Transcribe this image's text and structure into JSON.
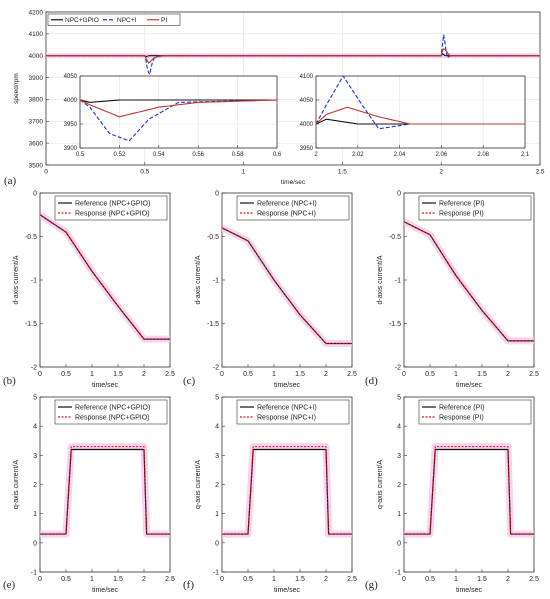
{
  "colors": {
    "reference": "#111111",
    "npc_gpio": "#111111",
    "npc_i": "#1f2fd0",
    "pi": "#c0392b",
    "response": "#e01010",
    "band": "#f6c8ee"
  },
  "chart_data": [
    {
      "id": "a",
      "type": "line",
      "label": "(a)",
      "xlabel": "time/sec",
      "ylabel": "speed/rpm",
      "xlim": [
        0,
        2.5
      ],
      "ylim": [
        3500,
        4200
      ],
      "xticks": [
        "0",
        "0.5",
        "1",
        "1.5",
        "2",
        "2.5"
      ],
      "yticks": [
        "3500",
        "3600",
        "3700",
        "3800",
        "3900",
        "4000",
        "4100",
        "4200"
      ],
      "grid": true,
      "legend_position": "top-left",
      "legend": [
        "NPC+GPIO",
        "NPC+I",
        "PI"
      ],
      "series": [
        {
          "name": "NPC+GPIO",
          "x": [
            0,
            0.5,
            0.505,
            0.52,
            0.54,
            0.6,
            2.0,
            2.005,
            2.02,
            2.04,
            2.5
          ],
          "y": [
            4000,
            4000,
            3995,
            4000,
            4000,
            4000,
            4000,
            4010,
            4000,
            4000,
            4000
          ]
        },
        {
          "name": "NPC+I",
          "x": [
            0,
            0.5,
            0.505,
            0.515,
            0.525,
            0.535,
            0.55,
            0.6,
            2.0,
            2.005,
            2.013,
            2.022,
            2.03,
            2.045,
            2.5
          ],
          "y": [
            4000,
            4000,
            3985,
            3930,
            3915,
            3960,
            3995,
            4000,
            4000,
            4040,
            4100,
            4040,
            3990,
            4000,
            4000
          ]
        },
        {
          "name": "PI",
          "x": [
            0,
            0.5,
            0.505,
            0.52,
            0.54,
            0.56,
            0.6,
            2.0,
            2.005,
            2.015,
            2.03,
            2.045,
            2.5
          ],
          "y": [
            4000,
            4000,
            3990,
            3965,
            3985,
            3995,
            4000,
            4000,
            4020,
            4035,
            4015,
            4000,
            4000
          ]
        }
      ],
      "insets": [
        {
          "xlim": [
            0.5,
            0.6
          ],
          "ylim": [
            3900,
            4050
          ],
          "xticks": [
            "0.5",
            "0.52",
            "0.54",
            "0.56",
            "0.58",
            "0.6"
          ],
          "yticks": [
            "3900",
            "3950",
            "4000",
            "4050"
          ]
        },
        {
          "xlim": [
            2,
            2.1
          ],
          "ylim": [
            3950,
            4100
          ],
          "xticks": [
            "2",
            "2.02",
            "2.04",
            "2.06",
            "2.08",
            "2.1"
          ],
          "yticks": [
            "3950",
            "4000",
            "4050",
            "4100"
          ]
        }
      ]
    },
    {
      "id": "b",
      "type": "line",
      "label": "(b)",
      "xlabel": "time/sec",
      "ylabel": "d-axis current/A",
      "xlim": [
        0,
        2.5
      ],
      "ylim": [
        -2,
        0
      ],
      "xticks": [
        "0",
        "0.5",
        "1",
        "1.5",
        "2",
        "2.5"
      ],
      "yticks": [
        "-2",
        "-1.5",
        "-1",
        "-0.5",
        "0"
      ],
      "legend_position": "top-right",
      "legend": [
        "Reference (NPC+GPIO)",
        "Response (NPC+GPIO)"
      ],
      "series": [
        {
          "name": "Reference (NPC+GPIO)",
          "x": [
            0,
            0.5,
            1.0,
            1.5,
            2.0,
            2.5
          ],
          "y": [
            -0.25,
            -0.45,
            -0.9,
            -1.3,
            -1.68,
            -1.68
          ]
        },
        {
          "name": "Response (NPC+GPIO)",
          "x": [
            0,
            0.5,
            1.0,
            1.5,
            2.0,
            2.5
          ],
          "y": [
            -0.25,
            -0.45,
            -0.9,
            -1.3,
            -1.68,
            -1.68
          ]
        }
      ]
    },
    {
      "id": "c",
      "type": "line",
      "label": "(c)",
      "xlabel": "time/sec",
      "ylabel": "d-axis current/A",
      "xlim": [
        0,
        2.5
      ],
      "ylim": [
        -2,
        0
      ],
      "xticks": [
        "0",
        "0.5",
        "1",
        "1.5",
        "2",
        "2.5"
      ],
      "yticks": [
        "-2",
        "-1.5",
        "-1",
        "-0.5",
        "0"
      ],
      "legend_position": "top-right",
      "legend": [
        "Reference (NPC+I)",
        "Response (NPC+I)"
      ],
      "series": [
        {
          "name": "Reference (NPC+I)",
          "x": [
            0,
            0.5,
            1.0,
            1.5,
            2.0,
            2.5
          ],
          "y": [
            -0.4,
            -0.55,
            -1.0,
            -1.4,
            -1.73,
            -1.73
          ]
        },
        {
          "name": "Response (NPC+I)",
          "x": [
            0,
            0.5,
            1.0,
            1.5,
            2.0,
            2.5
          ],
          "y": [
            -0.4,
            -0.55,
            -1.0,
            -1.4,
            -1.73,
            -1.73
          ]
        }
      ]
    },
    {
      "id": "d",
      "type": "line",
      "label": "(d)",
      "xlabel": "time/sec",
      "ylabel": "d-axis current/A",
      "xlim": [
        0,
        2.5
      ],
      "ylim": [
        -2,
        0
      ],
      "xticks": [
        "0",
        "0.5",
        "1",
        "1.5",
        "2",
        "2.5"
      ],
      "yticks": [
        "-2",
        "-1.5",
        "-1",
        "-0.5",
        "0"
      ],
      "legend_position": "top-right",
      "legend": [
        "Reference (PI)",
        "Response (PI)"
      ],
      "series": [
        {
          "name": "Reference (PI)",
          "x": [
            0,
            0.5,
            1.0,
            1.5,
            2.0,
            2.5
          ],
          "y": [
            -0.33,
            -0.48,
            -0.95,
            -1.35,
            -1.7,
            -1.7
          ]
        },
        {
          "name": "Response (PI)",
          "x": [
            0,
            0.5,
            1.0,
            1.5,
            2.0,
            2.5
          ],
          "y": [
            -0.33,
            -0.48,
            -0.95,
            -1.35,
            -1.7,
            -1.7
          ]
        }
      ]
    },
    {
      "id": "e",
      "type": "line",
      "label": "(e)",
      "xlabel": "time/sec",
      "ylabel": "q-axis current/A",
      "xlim": [
        0,
        2.5
      ],
      "ylim": [
        -1,
        5
      ],
      "xticks": [
        "0",
        "0.5",
        "1",
        "1.5",
        "2",
        "2.5"
      ],
      "yticks": [
        "-1",
        "0",
        "1",
        "2",
        "3",
        "4",
        "5"
      ],
      "legend_position": "top-right",
      "legend": [
        "Reference (NPC+GPIO)",
        "Response (NPC+GPIO)"
      ],
      "series": [
        {
          "name": "Reference (NPC+GPIO)",
          "x": [
            0,
            0.5,
            0.6,
            2.0,
            2.05,
            2.5
          ],
          "y": [
            0.3,
            0.3,
            3.2,
            3.2,
            0.3,
            0.3
          ]
        },
        {
          "name": "Response (NPC+GPIO)",
          "x": [
            0,
            0.5,
            0.6,
            2.0,
            2.05,
            2.5
          ],
          "y": [
            0.3,
            0.3,
            3.3,
            3.3,
            0.3,
            0.3
          ]
        }
      ]
    },
    {
      "id": "f",
      "type": "line",
      "label": "(f)",
      "xlabel": "time/sec",
      "ylabel": "q-axis current/A",
      "xlim": [
        0,
        2.5
      ],
      "ylim": [
        -1,
        5
      ],
      "xticks": [
        "0",
        "0.5",
        "1",
        "1.5",
        "2",
        "2.5"
      ],
      "yticks": [
        "-1",
        "0",
        "1",
        "2",
        "3",
        "4",
        "5"
      ],
      "legend_position": "top-right",
      "legend": [
        "Reference (NPC+I)",
        "Response (NPC+I)"
      ],
      "series": [
        {
          "name": "Reference (NPC+I)",
          "x": [
            0,
            0.5,
            0.6,
            2.0,
            2.05,
            2.5
          ],
          "y": [
            0.3,
            0.3,
            3.2,
            3.2,
            0.3,
            0.3
          ]
        },
        {
          "name": "Response (NPC+I)",
          "x": [
            0,
            0.5,
            0.6,
            2.0,
            2.05,
            2.5
          ],
          "y": [
            0.3,
            0.3,
            3.3,
            3.3,
            0.3,
            0.3
          ]
        }
      ]
    },
    {
      "id": "g",
      "type": "line",
      "label": "(g)",
      "xlabel": "time/sec",
      "ylabel": "q-axis current/A",
      "xlim": [
        0,
        2.5
      ],
      "ylim": [
        -1,
        5
      ],
      "xticks": [
        "0",
        "0.5",
        "1",
        "1.5",
        "2",
        "2.5"
      ],
      "yticks": [
        "-1",
        "0",
        "1",
        "2",
        "3",
        "4",
        "5"
      ],
      "legend_position": "top-right",
      "legend": [
        "Reference (PI)",
        "Response (PI)"
      ],
      "series": [
        {
          "name": "Reference (PI)",
          "x": [
            0,
            0.5,
            0.6,
            2.0,
            2.05,
            2.5
          ],
          "y": [
            0.3,
            0.3,
            3.2,
            3.2,
            0.3,
            0.3
          ]
        },
        {
          "name": "Response (PI)",
          "x": [
            0,
            0.5,
            0.6,
            2.0,
            2.05,
            2.5
          ],
          "y": [
            0.3,
            0.3,
            3.3,
            3.3,
            0.3,
            0.3
          ]
        }
      ]
    }
  ]
}
